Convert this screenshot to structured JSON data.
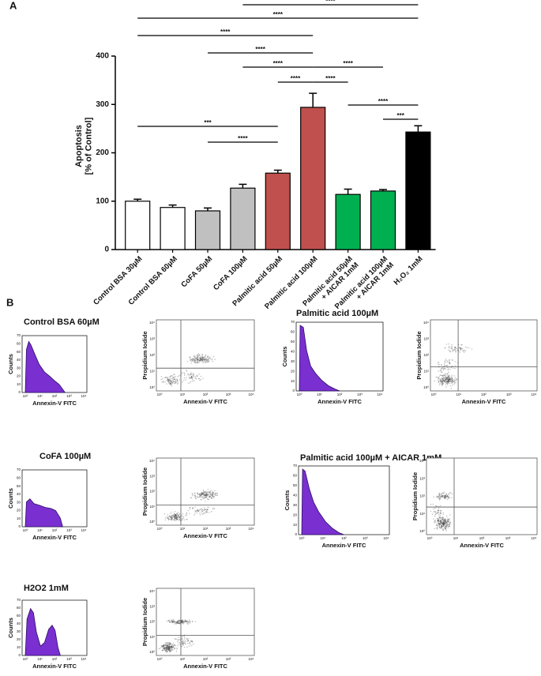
{
  "chart_data": {
    "type": "bar",
    "categories": [
      "Control BSA 30µM",
      "Control BSA 60µM",
      "CoFA 50µM",
      "CoFA 100µM",
      "Palmitic acid 50µM",
      "Palmitic acid 100µM",
      "Palmitic acid 50µM\n+ AICAR 1mM",
      "Palmitic acid 100µM\n+ AICAR 1mM",
      "H₂O₂ 1mM"
    ],
    "values": [
      100,
      87,
      80,
      127,
      158,
      294,
      114,
      121,
      243
    ],
    "errors": [
      4,
      5,
      6,
      8,
      6,
      29,
      11,
      3,
      13
    ],
    "colors": [
      "#ffffff",
      "#ffffff",
      "#c0c0c0",
      "#c0c0c0",
      "#c0504d",
      "#c0504d",
      "#00b050",
      "#00b050",
      "#000000"
    ],
    "y_label": "Apoptosis\n[% of Control]",
    "ylim": [
      0,
      400
    ],
    "yticks": [
      0,
      100,
      200,
      300,
      400
    ],
    "brackets": [
      {
        "from": "CoFA 100µM",
        "to": "H₂O₂ 1mM",
        "label": "****"
      },
      {
        "from": "Control BSA 30µM",
        "to": "H₂O₂ 1mM",
        "label": "****"
      },
      {
        "from": "Control BSA 30µM",
        "to": "Palmitic acid 100µM",
        "label": "****"
      },
      {
        "from": "CoFA 50µM",
        "to": "Palmitic acid 100µM",
        "label": "****"
      },
      {
        "from": "CoFA 100µM",
        "to": "Palmitic acid 100µM",
        "label": "****"
      },
      {
        "from": "Palmitic acid 100µM",
        "to": "Palmitic acid 100µM\n+ AICAR 1mM",
        "label": "****"
      },
      {
        "from": "Palmitic acid 50µM",
        "to": "Palmitic acid 100µM",
        "label": "****"
      },
      {
        "from": "Palmitic acid 100µM",
        "to": "Palmitic acid 50µM\n+ AICAR 1mM",
        "label": "****"
      },
      {
        "from": "Control BSA 30µM",
        "to": "Palmitic acid 50µM",
        "label": "***"
      },
      {
        "from": "CoFA 50µM",
        "to": "Palmitic acid 50µM",
        "label": "****"
      },
      {
        "from": "Palmitic acid 50µM\n+ AICAR 1mM",
        "to": "H₂O₂ 1mM",
        "label": "****"
      },
      {
        "from": "Palmitic acid 100µM\n+ AICAR 1mM",
        "to": "H₂O₂ 1mM",
        "label": "***"
      }
    ]
  },
  "panel_labels": [
    "A",
    "B"
  ],
  "flow": {
    "x_label": "Annexin-V FITC",
    "hist_y_label": "Counts",
    "dot_y_label": "Propidium Iodide",
    "log_ticks": [
      "10⁰",
      "10¹",
      "10²",
      "10³",
      "10⁴"
    ],
    "count_ticks": [
      0,
      10,
      20,
      30,
      40,
      50,
      60,
      70
    ],
    "samples": [
      "Control BSA 60µM",
      "Palmitic acid 100µM",
      "CoFA 100µM",
      "Palmitic acid 100µM + AICAR 1mM",
      "H2O2 1mM"
    ]
  }
}
